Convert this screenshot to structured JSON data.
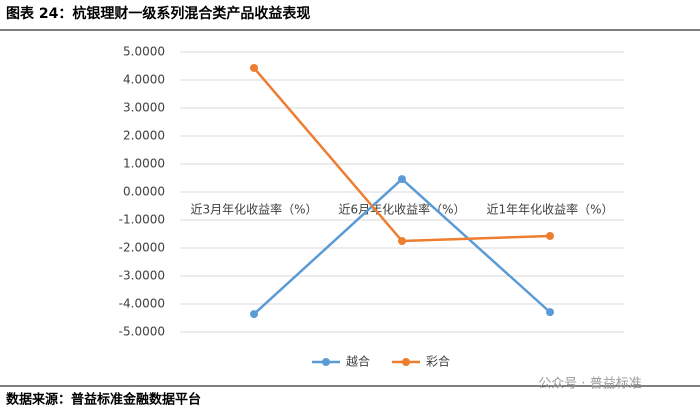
{
  "chart_data": {
    "type": "line",
    "title": "图表 24：杭银理财一级系列混合类产品收益表现",
    "categories": [
      "近3月年化收益率（%）",
      "近6月年化收益率（%）",
      "近1年年化收益率（%）"
    ],
    "series": [
      {
        "name": "越合",
        "color": "#5b9bd5",
        "values": [
          -4.36,
          0.46,
          -4.29
        ]
      },
      {
        "name": "彩合",
        "color": "#ed7d31",
        "values": [
          4.43,
          -1.75,
          -1.57
        ]
      }
    ],
    "ylim": [
      -5,
      5
    ],
    "yticks": [
      {
        "value": 5,
        "label": "5.0000"
      },
      {
        "value": 4,
        "label": "4.0000"
      },
      {
        "value": 3,
        "label": "3.0000"
      },
      {
        "value": 2,
        "label": "2.0000"
      },
      {
        "value": 1,
        "label": "1.0000"
      },
      {
        "value": 0,
        "label": "0.0000"
      },
      {
        "value": -1,
        "label": "-1.0000"
      },
      {
        "value": -2,
        "label": "-2.0000"
      },
      {
        "value": -3,
        "label": "-3.0000"
      },
      {
        "value": -4,
        "label": "-4.0000"
      },
      {
        "value": -5,
        "label": "-5.0000"
      }
    ],
    "grid": true,
    "legend": "bottom",
    "source": "数据来源：普益标准金融数据平台",
    "watermark": "公众号 · 普益标准"
  }
}
